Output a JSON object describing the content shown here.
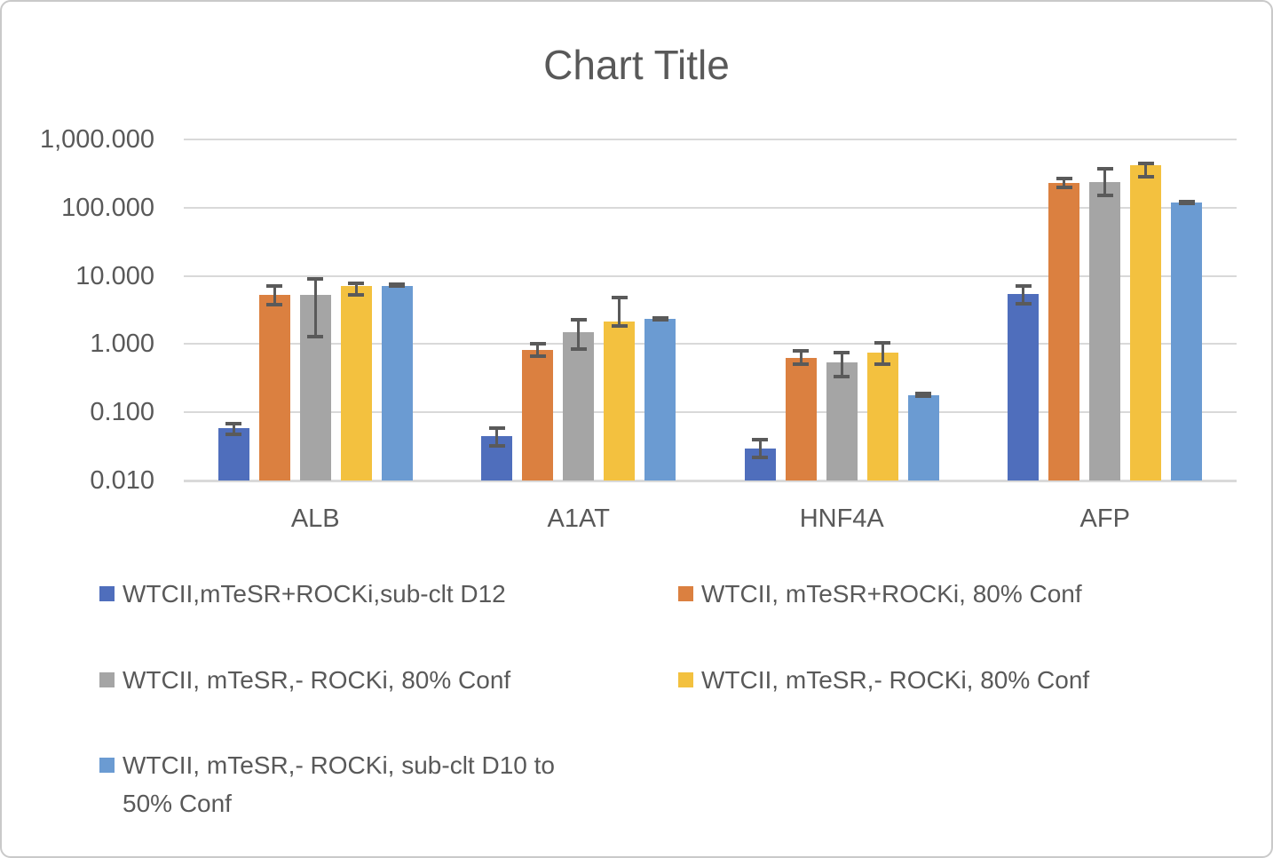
{
  "chart_data": {
    "type": "bar",
    "title": "Chart Title",
    "y_scale": "log10",
    "ylim": [
      0.01,
      1000
    ],
    "grid": true,
    "legend_position": "bottom",
    "text_color": "#595959",
    "gridline_color": "#d9d9d9",
    "error_bar_color": "#5a5a5a",
    "categories": [
      "ALB",
      "A1AT",
      "HNF4A",
      "AFP"
    ],
    "y_ticks": [
      {
        "label": "1,000.000",
        "value": 1000
      },
      {
        "label": "100.000",
        "value": 100
      },
      {
        "label": "10.000",
        "value": 10
      },
      {
        "label": "1.000",
        "value": 1
      },
      {
        "label": "0.100",
        "value": 0.1
      },
      {
        "label": "0.010",
        "value": 0.01
      }
    ],
    "series": [
      {
        "name": "WTCII,mTeSR+ROCKi,sub-clt D12",
        "color": "#4f6ebc",
        "values": [
          0.058,
          0.045,
          0.029,
          5.4
        ],
        "err_hi": [
          0.068,
          0.059,
          0.04,
          7.0
        ],
        "err_lo": [
          0.048,
          0.032,
          0.022,
          3.9
        ]
      },
      {
        "name": "WTCII, mTeSR+ROCKi, 80% Conf",
        "color": "#db8040",
        "values": [
          5.3,
          0.82,
          0.63,
          230
        ],
        "err_hi": [
          7.1,
          1.0,
          0.8,
          265
        ],
        "err_lo": [
          3.8,
          0.66,
          0.51,
          198
        ]
      },
      {
        "name": "WTCII, mTeSR,- ROCKi, 80% Conf",
        "color": "#a5a5a5",
        "values": [
          5.2,
          1.5,
          0.54,
          240
        ],
        "err_hi": [
          9.0,
          2.25,
          0.75,
          370
        ],
        "err_lo": [
          1.3,
          0.85,
          0.33,
          152
        ]
      },
      {
        "name": "WTCII, mTeSR,- ROCKi, 80% Conf",
        "color": "#f3c13f",
        "values": [
          7.1,
          2.15,
          0.75,
          420
        ],
        "err_hi": [
          7.8,
          4.8,
          1.04,
          448
        ],
        "err_lo": [
          5.2,
          1.85,
          0.51,
          285
        ]
      },
      {
        "name": "WTCII, mTeSR,- ROCKi, sub-clt D10 to 50% Conf",
        "color": "#6b9bd2",
        "values": [
          7.2,
          2.35,
          0.18,
          120
        ],
        "err_hi": [
          7.5,
          2.45,
          0.19,
          124
        ],
        "err_lo": [
          7.0,
          2.28,
          0.175,
          116
        ]
      }
    ]
  }
}
